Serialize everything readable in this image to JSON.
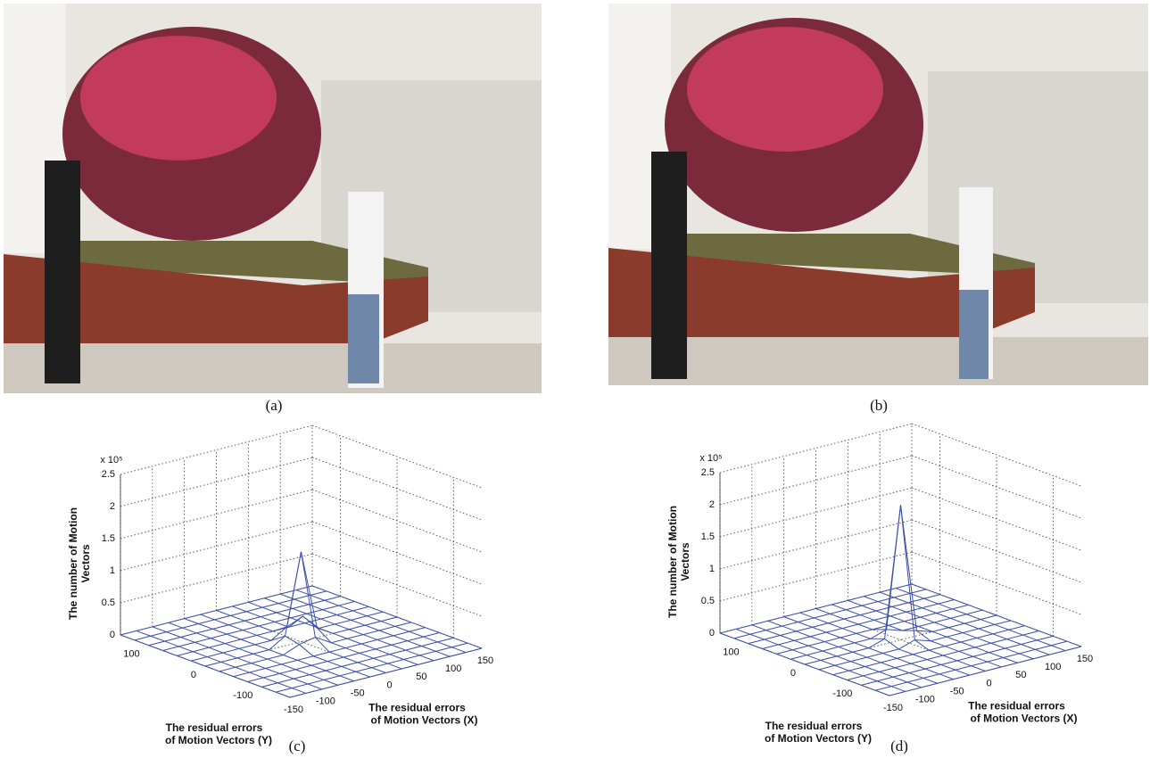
{
  "captions": [
    "(a)",
    "(b)",
    "(c)",
    "(d)"
  ],
  "chart_data": [
    {
      "type": "surface",
      "zlabel": [
        "The number of Motion",
        "Vectors"
      ],
      "ylabel": [
        "The residual errors",
        "of Motion Vectors (Y)"
      ],
      "xlabel": [
        "The residual errors",
        "of Motion Vectors (X)"
      ],
      "z_multiplier": "x 10⁵",
      "xlim": [
        -150,
        150
      ],
      "xticks": [
        -150,
        -100,
        -50,
        0,
        50,
        100,
        150
      ],
      "ylim": [
        -150,
        150
      ],
      "yticks": [
        -100,
        0,
        100
      ],
      "zlim": [
        0,
        2.5
      ],
      "zticks": [
        0,
        0.5,
        1,
        1.5,
        2,
        2.5
      ],
      "color": "#3b4fa6",
      "x": [
        -150,
        -125,
        -100,
        -75,
        -50,
        -25,
        0,
        25,
        50,
        75,
        100,
        125,
        150
      ],
      "y": [
        -150,
        -125,
        -100,
        -75,
        -50,
        -25,
        0,
        25,
        50,
        75,
        100,
        125,
        150
      ],
      "z": [
        [
          0,
          0,
          0,
          0,
          0,
          0,
          0,
          0,
          0,
          0,
          0,
          0,
          0
        ],
        [
          0,
          0,
          0,
          0,
          0,
          0,
          0,
          0,
          0,
          0,
          0,
          0,
          0
        ],
        [
          0,
          0,
          0,
          0,
          0,
          0,
          0,
          0,
          0,
          0,
          0,
          0,
          0
        ],
        [
          0,
          0,
          0,
          0,
          0,
          0,
          0,
          0,
          0,
          0,
          0,
          0,
          0
        ],
        [
          0,
          0,
          0,
          0,
          0,
          0,
          0,
          0,
          0,
          0,
          0,
          0,
          0
        ],
        [
          0,
          0,
          0,
          0,
          0,
          0.1,
          0.15,
          0,
          0,
          0,
          0,
          0,
          0
        ],
        [
          0,
          0,
          0,
          0,
          0,
          0.15,
          1.4,
          0.15,
          0,
          0,
          0,
          0,
          0
        ],
        [
          0,
          0,
          0,
          0,
          0,
          0,
          0.15,
          0.25,
          0,
          0,
          0,
          0,
          0
        ],
        [
          0,
          0,
          0,
          0,
          0,
          0,
          0,
          0,
          0,
          0,
          0,
          0,
          0
        ],
        [
          0,
          0,
          0,
          0,
          0,
          0,
          0,
          0,
          0,
          0,
          0,
          0,
          0
        ],
        [
          0,
          0,
          0,
          0,
          0,
          0,
          0,
          0,
          0,
          0,
          0,
          0,
          0
        ],
        [
          0,
          0,
          0,
          0,
          0,
          0,
          0,
          0,
          0,
          0,
          0,
          0,
          0
        ],
        [
          0,
          0,
          0,
          0,
          0,
          0,
          0,
          0,
          0,
          0,
          0,
          0,
          0
        ]
      ]
    },
    {
      "type": "surface",
      "zlabel": [
        "The number of Motion",
        "Vectors"
      ],
      "ylabel": [
        "The residual errors",
        "of Motion Vectors (Y)"
      ],
      "xlabel": [
        "The residual errors",
        "of Motion Vectors (X)"
      ],
      "z_multiplier": "x 10⁵",
      "xlim": [
        -150,
        150
      ],
      "xticks": [
        -150,
        -100,
        -50,
        0,
        50,
        100,
        150
      ],
      "ylim": [
        -150,
        150
      ],
      "yticks": [
        -100,
        0,
        100
      ],
      "zlim": [
        0,
        2.5
      ],
      "zticks": [
        0,
        0.5,
        1,
        1.5,
        2,
        2.5
      ],
      "color": "#3b4fa6",
      "x": [
        -150,
        -125,
        -100,
        -75,
        -50,
        -25,
        0,
        25,
        50,
        75,
        100,
        125,
        150
      ],
      "y": [
        -150,
        -125,
        -100,
        -75,
        -50,
        -25,
        0,
        25,
        50,
        75,
        100,
        125,
        150
      ],
      "z": [
        [
          0,
          0,
          0,
          0,
          0,
          0,
          0,
          0,
          0,
          0,
          0,
          0,
          0
        ],
        [
          0,
          0,
          0,
          0,
          0,
          0,
          0,
          0,
          0,
          0,
          0,
          0,
          0
        ],
        [
          0,
          0,
          0,
          0,
          0,
          0,
          0,
          0,
          0,
          0,
          0,
          0,
          0
        ],
        [
          0,
          0,
          0,
          0,
          0,
          0,
          0,
          0,
          0,
          0,
          0,
          0,
          0
        ],
        [
          0,
          0,
          0,
          0,
          0,
          0,
          0,
          0,
          0,
          0,
          0,
          0,
          0
        ],
        [
          0,
          0,
          0,
          0,
          0,
          0,
          0.08,
          0,
          0,
          0,
          0,
          0,
          0
        ],
        [
          0,
          0,
          0,
          0,
          0,
          0.08,
          2.1,
          0.08,
          0,
          0,
          0,
          0,
          0
        ],
        [
          0,
          0,
          0,
          0,
          0,
          0,
          0.08,
          0,
          0,
          0,
          0,
          0,
          0
        ],
        [
          0,
          0,
          0,
          0,
          0,
          0,
          0,
          0,
          0,
          0,
          0,
          0,
          0
        ],
        [
          0,
          0,
          0,
          0,
          0,
          0,
          0,
          0,
          0,
          0,
          0,
          0,
          0
        ],
        [
          0,
          0,
          0,
          0,
          0,
          0,
          0,
          0,
          0,
          0,
          0,
          0,
          0
        ],
        [
          0,
          0,
          0,
          0,
          0,
          0,
          0,
          0,
          0,
          0,
          0,
          0,
          0
        ],
        [
          0,
          0,
          0,
          0,
          0,
          0,
          0,
          0,
          0,
          0,
          0,
          0,
          0
        ]
      ]
    }
  ]
}
